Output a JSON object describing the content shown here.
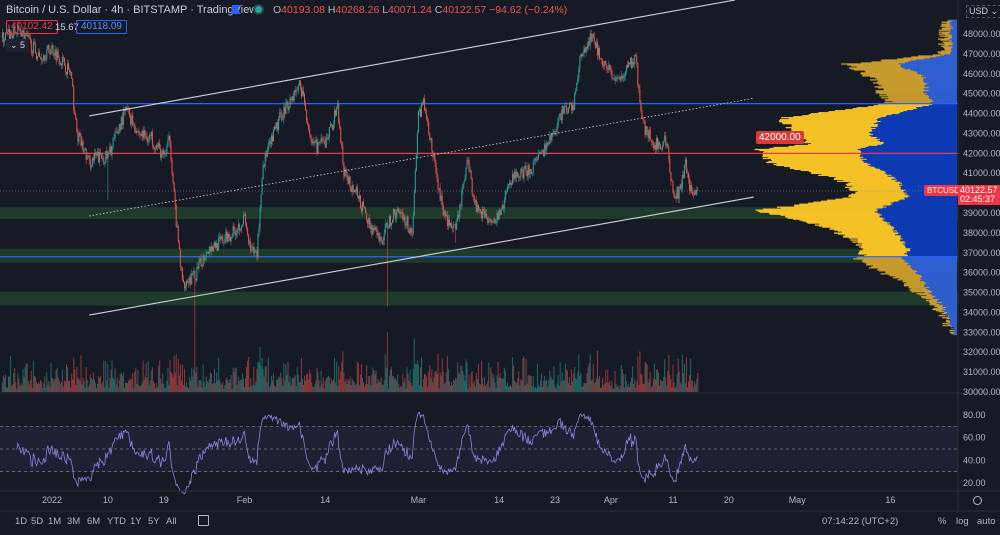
{
  "header": {
    "title": "Bitcoin / U.S. Dollar · 4h · BITSTAMP · TradingView",
    "ohlc": [
      {
        "k": "O",
        "v": "40193.08"
      },
      {
        "k": "H",
        "v": "40268.26"
      },
      {
        "k": "L",
        "v": "40071.24"
      },
      {
        "k": "C",
        "v": "40122.57"
      },
      {
        "k": "",
        "v": "−94.62 (−0.24%)"
      }
    ],
    "bid": "40102.42",
    "spread": "15.67",
    "ask": "40118.09",
    "indicators_toggle": "⌄ 5",
    "currency": "USD ⌄"
  },
  "colors": {
    "bg": "#161a25",
    "up": "#26a69a",
    "down": "#ef5350",
    "blue_line": "#2962ff",
    "red_line": "#f23645",
    "zone": "#1e3a2a",
    "rsi": "#8b83d6",
    "profile_yellow": "#f5c227",
    "profile_blue": "#0d3bb5",
    "profile_yellow_dim": "#c79a2c",
    "profile_blue_dim": "#2f5fd0"
  },
  "price_tag": {
    "symbol": "BTCUSD",
    "price": "40122.57",
    "countdown": "02:45:37"
  },
  "alert_label": "42000.00",
  "time_ticks": [
    {
      "label": "2022",
      "date": "2022-01-01"
    },
    {
      "label": "10",
      "date": "2022-01-10"
    },
    {
      "label": "19",
      "date": "2022-01-19"
    },
    {
      "label": "Feb",
      "date": "2022-02-01"
    },
    {
      "label": "14",
      "date": "2022-02-14"
    },
    {
      "label": "Mar",
      "date": "2022-03-01"
    },
    {
      "label": "14",
      "date": "2022-03-14"
    },
    {
      "label": "23",
      "date": "2022-03-23"
    },
    {
      "label": "Apr",
      "date": "2022-04-01"
    },
    {
      "label": "11",
      "date": "2022-04-11"
    },
    {
      "label": "20",
      "date": "2022-04-20"
    },
    {
      "label": "May",
      "date": "2022-05-01"
    },
    {
      "label": "16",
      "date": "2022-05-16"
    }
  ],
  "price_ticks": [
    "48000.00",
    "47000.00",
    "46000.00",
    "45000.00",
    "44000.00",
    "43000.00",
    "42000.00",
    "41000.00",
    "39000.00",
    "38000.00",
    "37000.00",
    "36000.00",
    "35000.00",
    "34000.00",
    "33000.00",
    "32000.00",
    "31000.00",
    "30000.00"
  ],
  "rsi_ticks": [
    "80.00",
    "60.00",
    "40.00",
    "20.00"
  ],
  "toolbar": {
    "ranges": [
      "1D",
      "5D",
      "1M",
      "3M",
      "6M",
      "YTD",
      "1Y",
      "5Y",
      "All"
    ],
    "clock": "07:14:22 (UTC+2)",
    "percent": "%",
    "log": "log",
    "auto": "auto"
  },
  "chart_data": {
    "type": "candlestick",
    "symbol": "BTCUSD",
    "interval": "4h",
    "ylim": [
      30000,
      49000
    ],
    "rsi_ylim": [
      15,
      90
    ],
    "rsi_levels": [
      70,
      50,
      30
    ],
    "price_path": [
      [
        "2021-12-24",
        47800
      ],
      [
        "2021-12-27",
        48200
      ],
      [
        "2021-12-30",
        46800
      ],
      [
        "2022-01-01",
        47300
      ],
      [
        "2022-01-03",
        46500
      ],
      [
        "2022-01-04",
        46000
      ],
      [
        "2022-01-05",
        43000
      ],
      [
        "2022-01-07",
        41500
      ],
      [
        "2022-01-08",
        41800
      ],
      [
        "2022-01-10",
        41800
      ],
      [
        "2022-01-12",
        43500
      ],
      [
        "2022-01-13",
        44200
      ],
      [
        "2022-01-15",
        43000
      ],
      [
        "2022-01-17",
        42800
      ],
      [
        "2022-01-19",
        41800
      ],
      [
        "2022-01-20",
        42700
      ],
      [
        "2022-01-21",
        38500
      ],
      [
        "2022-01-22",
        35500
      ],
      [
        "2022-01-24",
        35800
      ],
      [
        "2022-01-26",
        37200
      ],
      [
        "2022-01-28",
        37500
      ],
      [
        "2022-01-30",
        38000
      ],
      [
        "2022-02-01",
        38700
      ],
      [
        "2022-02-02",
        37000
      ],
      [
        "2022-02-03",
        37000
      ],
      [
        "2022-02-04",
        41500
      ],
      [
        "2022-02-07",
        44000
      ],
      [
        "2022-02-09",
        45000
      ],
      [
        "2022-02-10",
        45500
      ],
      [
        "2022-02-12",
        42300
      ],
      [
        "2022-02-14",
        42500
      ],
      [
        "2022-02-16",
        44300
      ],
      [
        "2022-02-17",
        41000
      ],
      [
        "2022-02-19",
        40000
      ],
      [
        "2022-02-21",
        38500
      ],
      [
        "2022-02-23",
        37500
      ],
      [
        "2022-02-24",
        38500
      ],
      [
        "2022-02-26",
        39200
      ],
      [
        "2022-02-28",
        38000
      ],
      [
        "2022-03-01",
        44000
      ],
      [
        "2022-03-02",
        44500
      ],
      [
        "2022-03-03",
        42500
      ],
      [
        "2022-03-05",
        39000
      ],
      [
        "2022-03-07",
        38000
      ],
      [
        "2022-03-09",
        41800
      ],
      [
        "2022-03-10",
        39500
      ],
      [
        "2022-03-12",
        38800
      ],
      [
        "2022-03-14",
        38800
      ],
      [
        "2022-03-16",
        40800
      ],
      [
        "2022-03-18",
        41000
      ],
      [
        "2022-03-20",
        41500
      ],
      [
        "2022-03-22",
        42500
      ],
      [
        "2022-03-24",
        44000
      ],
      [
        "2022-03-26",
        44500
      ],
      [
        "2022-03-27",
        46500
      ],
      [
        "2022-03-28",
        47500
      ],
      [
        "2022-03-29",
        47800
      ],
      [
        "2022-03-31",
        46500
      ],
      [
        "2022-04-02",
        45500
      ],
      [
        "2022-04-04",
        46500
      ],
      [
        "2022-04-05",
        46800
      ],
      [
        "2022-04-06",
        43500
      ],
      [
        "2022-04-08",
        42500
      ],
      [
        "2022-04-10",
        42600
      ],
      [
        "2022-04-11",
        40000
      ],
      [
        "2022-04-12",
        40000
      ],
      [
        "2022-04-13",
        41400
      ],
      [
        "2022-04-14",
        40000
      ],
      [
        "2022-04-15",
        40122.57
      ]
    ],
    "wick_lows": [
      [
        "2022-01-10",
        39650
      ],
      [
        "2022-01-24",
        33000
      ],
      [
        "2022-02-24",
        34300
      ],
      [
        "2022-03-07",
        37500
      ]
    ],
    "horizontal_lines": [
      {
        "price": 44500,
        "color": "#2962ff"
      },
      {
        "price": 42000,
        "color": "#f23645"
      },
      {
        "price": 36800,
        "color": "#2962ff"
      }
    ],
    "zones": [
      [
        38700,
        39300
      ],
      [
        36500,
        37200
      ],
      [
        34350,
        35050
      ]
    ],
    "trend_lines": [
      {
        "from": [
          "2022-01-07",
          43880
        ],
        "to": [
          "2022-04-21",
          49710
        ],
        "style": "solid"
      },
      {
        "from": [
          "2022-01-07",
          38850
        ],
        "to": [
          "2022-04-24",
          44770
        ],
        "style": "dotted"
      },
      {
        "from": [
          "2022-01-07",
          33870
        ],
        "to": [
          "2022-04-24",
          39800
        ],
        "style": "solid"
      }
    ],
    "volume_profile": {
      "value_area": [
        36800,
        44500
      ],
      "levels": [
        [
          48600,
          0.06,
          0.03
        ],
        [
          47000,
          0.07,
          0.03
        ],
        [
          46500,
          0.53,
          0.29
        ],
        [
          45800,
          0.42,
          0.15
        ],
        [
          45000,
          0.36,
          0.15
        ],
        [
          44500,
          0.32,
          0.11
        ],
        [
          43800,
          0.84,
          0.37
        ],
        [
          43000,
          0.81,
          0.42
        ],
        [
          42500,
          0.71,
          0.36
        ],
        [
          42200,
          0.95,
          0.47
        ],
        [
          41500,
          0.89,
          0.44
        ],
        [
          41000,
          0.68,
          0.34
        ],
        [
          40500,
          0.52,
          0.28
        ],
        [
          39800,
          0.5,
          0.24
        ],
        [
          39100,
          0.98,
          0.4
        ],
        [
          38600,
          0.73,
          0.34
        ],
        [
          37800,
          0.52,
          0.28
        ],
        [
          37200,
          0.44,
          0.23
        ],
        [
          36700,
          0.48,
          0.26
        ],
        [
          35800,
          0.32,
          0.18
        ],
        [
          35000,
          0.18,
          0.13
        ],
        [
          34300,
          0.1,
          0.07
        ],
        [
          33500,
          0.05,
          0.03
        ],
        [
          33000,
          0.02,
          0.01
        ]
      ]
    }
  }
}
